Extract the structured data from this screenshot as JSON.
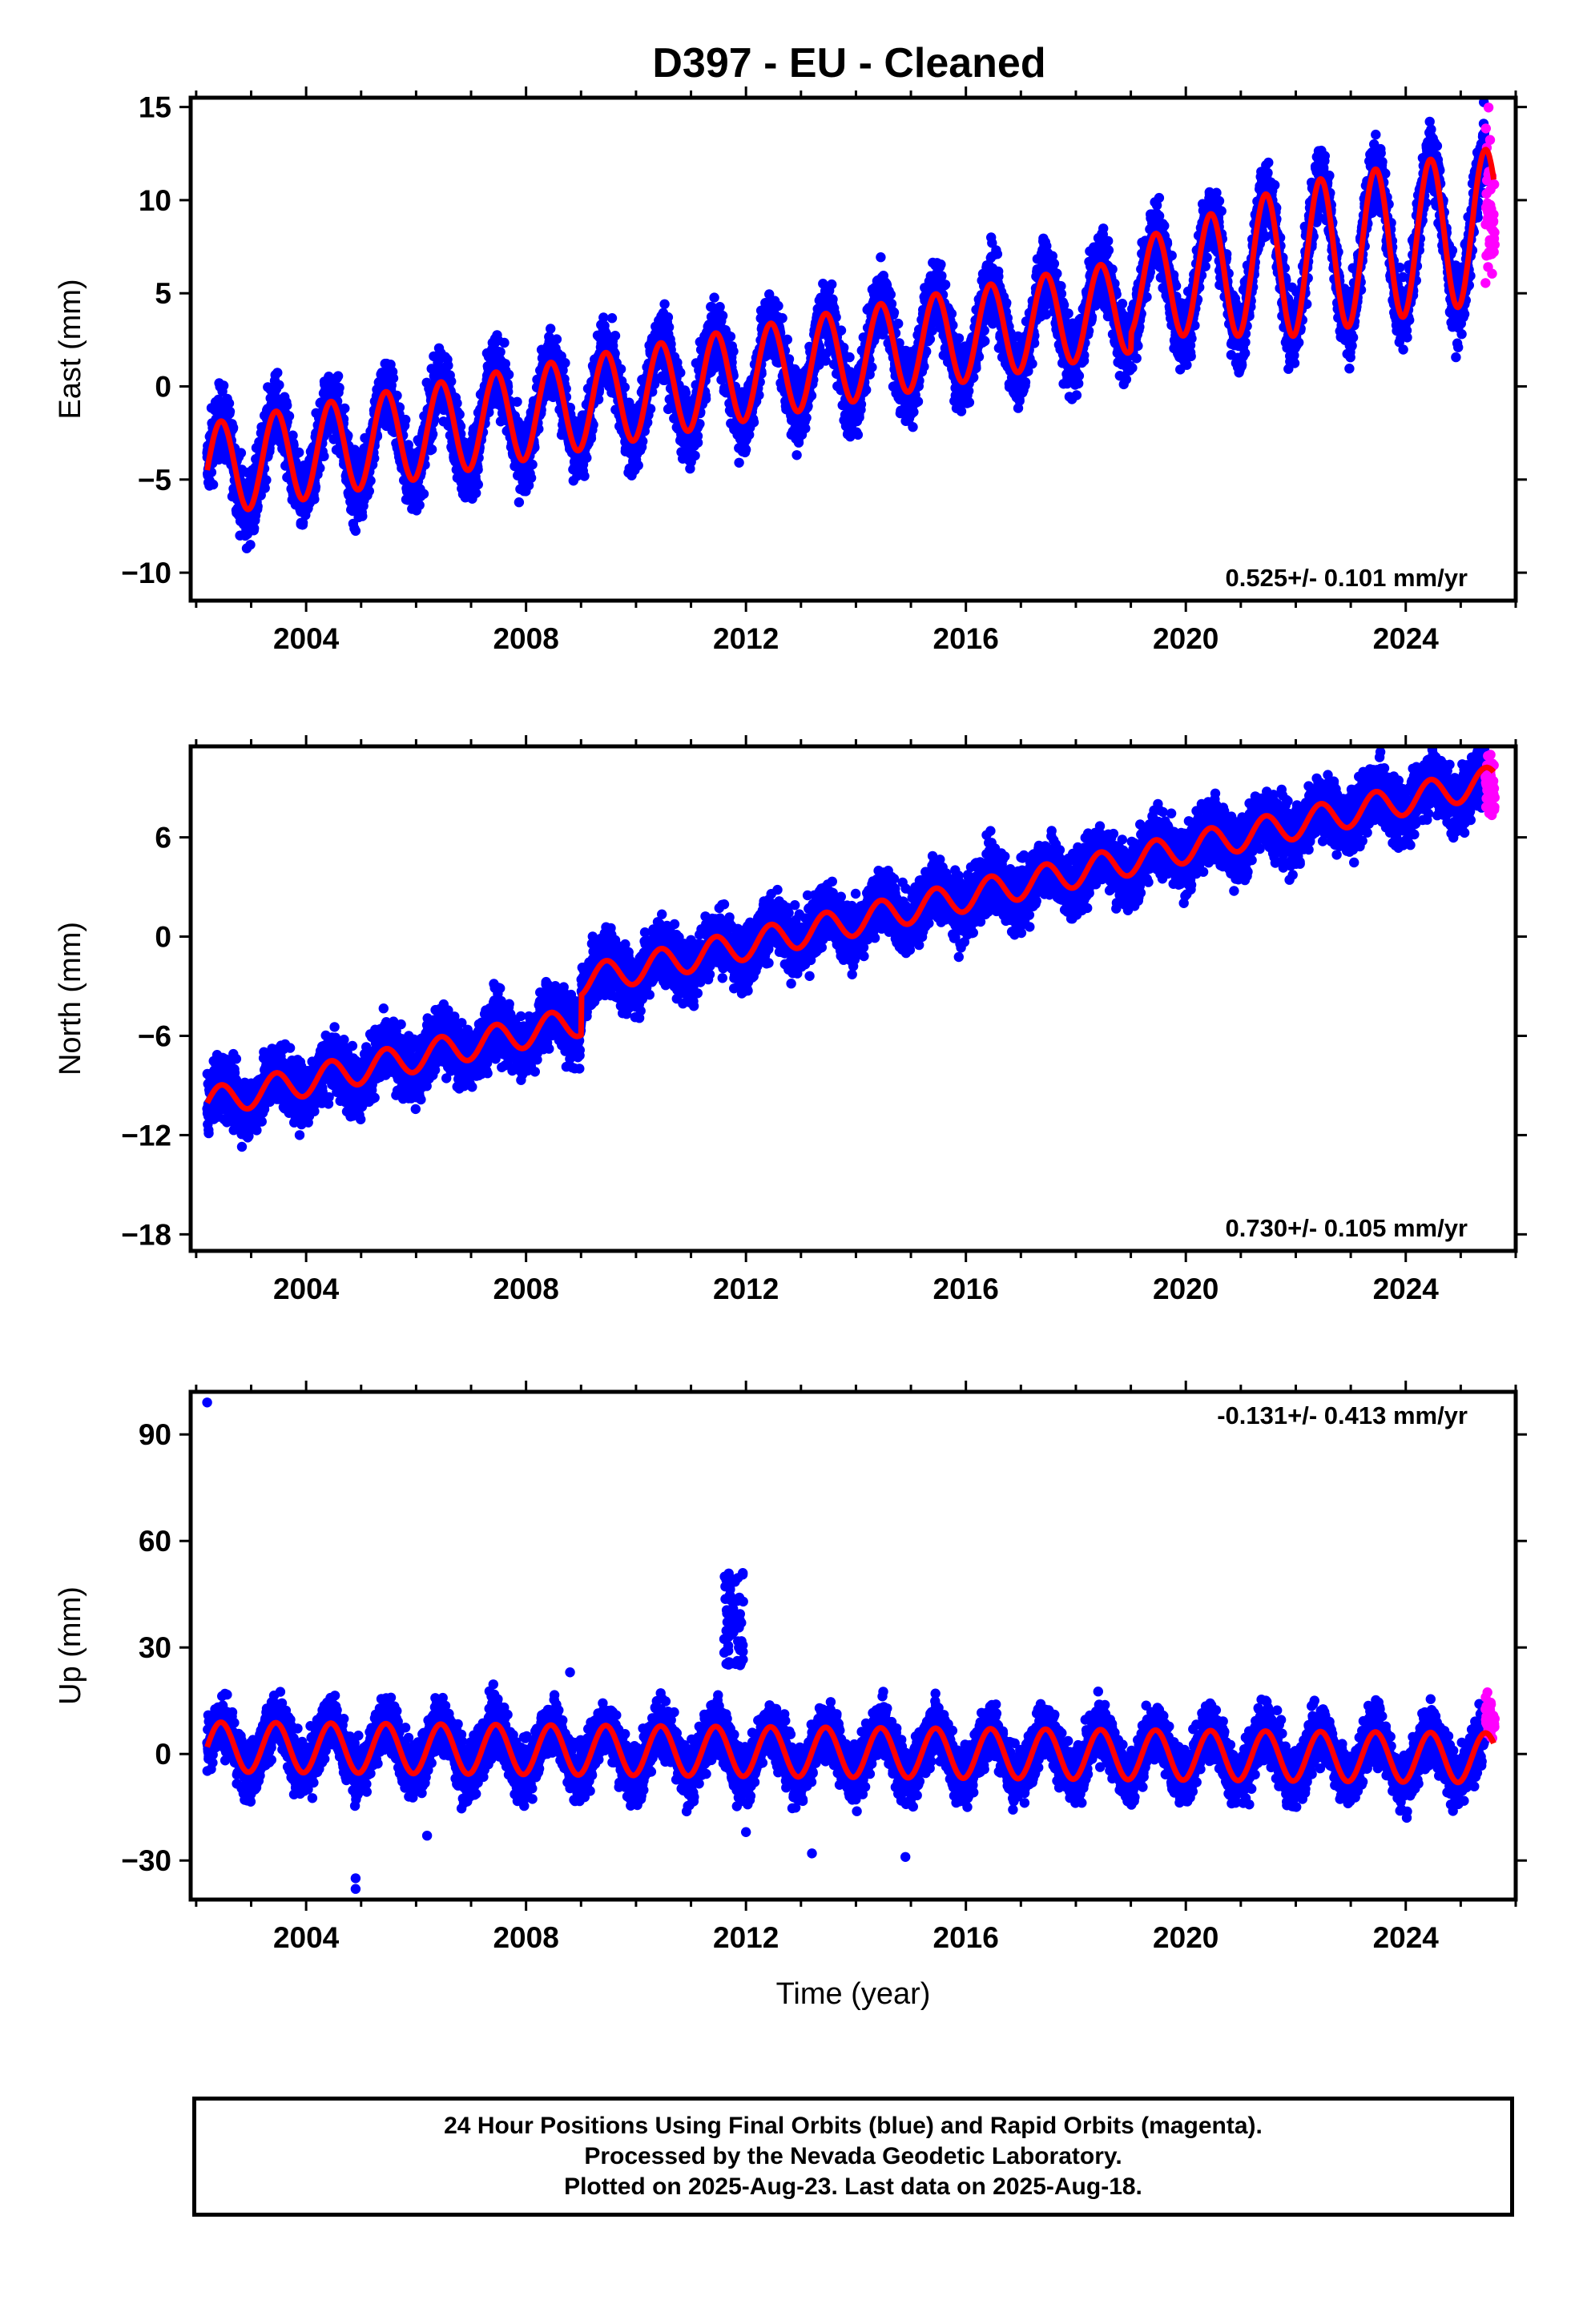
{
  "chart_data": [
    {
      "type": "scatter",
      "title": "D397  - EU - Cleaned",
      "ylabel": "East (mm)",
      "xlabel": "",
      "rate_label": "0.525+/- 0.101 mm/yr",
      "xlim": [
        2001.9,
        2026.0
      ],
      "ylim": [
        -11.5,
        15.5
      ],
      "x_ticks": [
        2004,
        2008,
        2012,
        2016,
        2020,
        2024
      ],
      "y_ticks": [
        -10,
        -5,
        0,
        5,
        10,
        15
      ],
      "grid": false,
      "model": {
        "start": 2002.2,
        "end": 2025.6,
        "intercept_at_2002": -4.6,
        "rate": 0.525,
        "annual_amplitude": 2.5,
        "step_2019": 0.9,
        "amp_change_2019": 1.6,
        "phase_peak": 0.45
      },
      "series": [
        {
          "values_from": "model",
          "noise": 1.3,
          "color": "#0000ff",
          "kind": "points"
        },
        {
          "values_from": "model",
          "noise": 2.6,
          "color": "#ff00ff",
          "kind": "points",
          "x_range": [
            2025.45,
            2025.62
          ],
          "offset": -3.0
        },
        {
          "values_from": "model",
          "color": "#ff0000",
          "kind": "line"
        }
      ]
    },
    {
      "type": "scatter",
      "title": "",
      "ylabel": "North (mm)",
      "xlabel": "",
      "rate_label": "0.730+/- 0.105 mm/yr",
      "xlim": [
        2001.9,
        2026.0
      ],
      "ylim": [
        -19,
        11.5
      ],
      "x_ticks": [
        2004,
        2008,
        2012,
        2016,
        2020,
        2024
      ],
      "y_ticks": [
        -18,
        -12,
        -6,
        0,
        6
      ],
      "grid": false,
      "model": {
        "start": 2002.2,
        "end": 2025.6,
        "intercept_at_2002": -10.2,
        "rate": 0.73,
        "annual_amplitude": 0.9,
        "step_2009": 2.4,
        "phase_peak": 0.45
      },
      "series": [
        {
          "values_from": "model",
          "noise": 1.3,
          "color": "#0000ff",
          "kind": "points"
        },
        {
          "values_from": "model",
          "noise": 1.5,
          "color": "#ff00ff",
          "kind": "points",
          "x_range": [
            2025.45,
            2025.62
          ],
          "offset": -1.0
        },
        {
          "values_from": "model",
          "color": "#ff0000",
          "kind": "line"
        }
      ]
    },
    {
      "type": "scatter",
      "title": "",
      "ylabel": "Up (mm)",
      "xlabel": "Time (year)",
      "rate_label": "-0.131+/- 0.413 mm/yr",
      "xlim": [
        2001.9,
        2026.0
      ],
      "ylim": [
        -41,
        102
      ],
      "x_ticks": [
        2004,
        2008,
        2012,
        2016,
        2020,
        2024
      ],
      "y_ticks": [
        -30,
        0,
        30,
        60,
        90
      ],
      "grid": false,
      "model": {
        "start": 2002.2,
        "end": 2025.6,
        "intercept_at_2002": 2.0,
        "rate": -0.131,
        "annual_amplitude": 7.0,
        "phase_peak": 0.45
      },
      "outliers": [
        {
          "x": 2002.2,
          "y": 99
        },
        {
          "x": 2004.9,
          "y": -35
        },
        {
          "x": 2004.9,
          "y": -38
        },
        {
          "x": 2006.2,
          "y": -23
        },
        {
          "x": 2008.8,
          "y": 23
        },
        {
          "x": 2012.0,
          "y": -22
        },
        {
          "x": 2013.2,
          "y": -28
        },
        {
          "x": 2014.9,
          "y": -29
        }
      ],
      "clusters": [
        {
          "x_range": [
            2011.6,
            2011.95
          ],
          "y_range": [
            25,
            51
          ],
          "count": 60
        }
      ],
      "series": [
        {
          "values_from": "model",
          "noise": 5.5,
          "color": "#0000ff",
          "kind": "points"
        },
        {
          "values_from": "model",
          "noise": 4.0,
          "color": "#ff00ff",
          "kind": "points",
          "x_range": [
            2025.45,
            2025.62
          ],
          "offset": 5.0
        },
        {
          "values_from": "model",
          "color": "#ff0000",
          "kind": "line"
        }
      ]
    }
  ],
  "footer": {
    "line1": "24 Hour Positions Using Final Orbits (blue) and Rapid Orbits (magenta).",
    "line2": "Processed by the Nevada Geodetic Laboratory.",
    "line3": "Plotted on 2025-Aug-23. Last data on 2025-Aug-18."
  }
}
